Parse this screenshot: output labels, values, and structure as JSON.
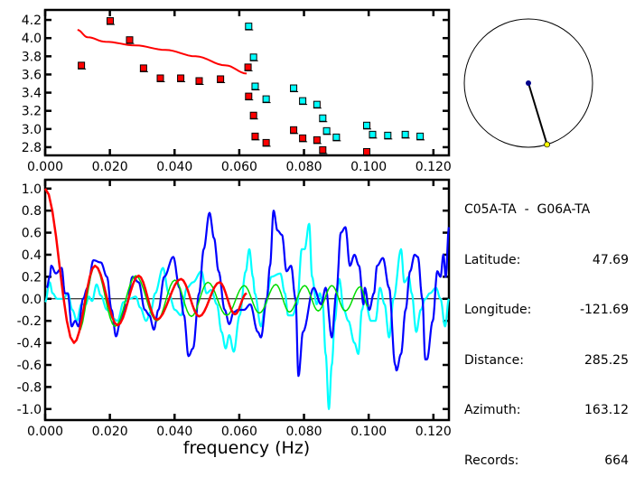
{
  "info": {
    "title": "C05A-TA  -  G06A-TA",
    "rows": [
      {
        "label": "Latitude:",
        "value": "47.69"
      },
      {
        "label": "Longitude:",
        "value": "-121.69"
      },
      {
        "label": "Distance:",
        "value": "285.25"
      },
      {
        "label": "Azimuth:",
        "value": "163.12"
      },
      {
        "label": "Records:",
        "value": "664"
      }
    ]
  },
  "azimuth_deg": 163.12,
  "colors": {
    "red": "#ff0000",
    "cyan": "#00ffff",
    "blue": "#0000ff",
    "green": "#00dd00",
    "navy": "#00008b",
    "yellow": "#ffff00"
  },
  "chart_data": [
    {
      "type": "scatter",
      "title": "",
      "xlabel": "",
      "ylabel": "",
      "xlim": [
        0,
        0.1248
      ],
      "ylim": [
        2.71,
        4.31
      ],
      "xticks": [
        "0.000",
        "0.020",
        "0.040",
        "0.060",
        "0.080",
        "0.100",
        "0.120"
      ],
      "xtick_values": [
        0,
        0.02,
        0.04,
        0.06,
        0.08,
        0.1,
        0.12
      ],
      "yticks": [
        "2.8",
        "3.0",
        "3.2",
        "3.4",
        "3.6",
        "3.8",
        "4.0",
        "4.2"
      ],
      "ytick_values": [
        2.8,
        3.0,
        3.2,
        3.4,
        3.6,
        3.8,
        4.0,
        4.2
      ],
      "series": [
        {
          "name": "red-points",
          "color": "#ff0000",
          "x": [
            0.0112,
            0.0201,
            0.0261,
            0.0304,
            0.0356,
            0.0419,
            0.0476,
            0.0542,
            0.0627,
            0.0629,
            0.0644,
            0.0649,
            0.0683,
            0.0768,
            0.0796,
            0.084,
            0.0858,
            0.0994
          ],
          "y": [
            3.7,
            4.19,
            3.98,
            3.67,
            3.56,
            3.56,
            3.53,
            3.55,
            3.68,
            3.36,
            3.15,
            2.92,
            2.85,
            2.99,
            2.9,
            2.88,
            2.77,
            2.75
          ]
        },
        {
          "name": "cyan-points",
          "color": "#00ffff",
          "x": [
            0.0629,
            0.0644,
            0.0649,
            0.0683,
            0.0768,
            0.0796,
            0.084,
            0.0858,
            0.087,
            0.09,
            0.0994,
            0.1012,
            0.1059,
            0.1113,
            0.1159
          ],
          "y": [
            4.13,
            3.79,
            3.47,
            3.33,
            3.45,
            3.31,
            3.27,
            3.12,
            2.98,
            2.91,
            3.04,
            2.94,
            2.93,
            2.94,
            2.92
          ]
        },
        {
          "name": "red-curve",
          "type": "line",
          "color": "#ff0000",
          "x": [
            0.01,
            0.0131,
            0.0186,
            0.0279,
            0.0372,
            0.0465,
            0.0558,
            0.0623
          ],
          "y": [
            4.09,
            4.01,
            3.96,
            3.92,
            3.87,
            3.8,
            3.7,
            3.61
          ]
        }
      ]
    },
    {
      "type": "line",
      "title": "",
      "xlabel": "frequency (Hz)",
      "ylabel": "",
      "xlim": [
        0,
        0.1248
      ],
      "ylim": [
        -1.1,
        1.08
      ],
      "xticks": [
        "0.000",
        "0.020",
        "0.040",
        "0.060",
        "0.080",
        "0.100",
        "0.120"
      ],
      "xtick_values": [
        0,
        0.02,
        0.04,
        0.06,
        0.08,
        0.1,
        0.12
      ],
      "yticks": [
        "1.0",
        "0.8",
        "0.6",
        "0.4",
        "0.2",
        "0.0",
        "-0.2",
        "-0.4",
        "-0.6",
        "-0.8",
        "-1.0"
      ],
      "ytick_values": [
        1.0,
        0.8,
        0.6,
        0.4,
        0.2,
        0.0,
        -0.2,
        -0.4,
        -0.6,
        -0.8,
        -1.0
      ],
      "series": [
        {
          "name": "cyan",
          "color": "#00ffff",
          "x": [
            0.0,
            0.0014,
            0.0023,
            0.0037,
            0.0056,
            0.007,
            0.0084,
            0.0098,
            0.0112,
            0.0126,
            0.0135,
            0.0145,
            0.0159,
            0.0172,
            0.0191,
            0.021,
            0.0224,
            0.0242,
            0.0261,
            0.028,
            0.0294,
            0.0312,
            0.0326,
            0.034,
            0.0364,
            0.0382,
            0.0401,
            0.042,
            0.0438,
            0.0457,
            0.0483,
            0.0499,
            0.0513,
            0.0531,
            0.0545,
            0.0558,
            0.0569,
            0.0583,
            0.0601,
            0.062,
            0.0631,
            0.0642,
            0.0648,
            0.0667,
            0.0681,
            0.0699,
            0.0727,
            0.0741,
            0.0751,
            0.0765,
            0.0779,
            0.0793,
            0.0802,
            0.0816,
            0.0825,
            0.0839,
            0.0849,
            0.0858,
            0.0867,
            0.0877,
            0.0886,
            0.0895,
            0.0909,
            0.0923,
            0.0937,
            0.0956,
            0.0968,
            0.0979,
            0.0988,
            0.1007,
            0.1021,
            0.1035,
            0.1049,
            0.1063,
            0.1077,
            0.11,
            0.111,
            0.1124,
            0.1133,
            0.1147,
            0.1161,
            0.1175,
            0.1189,
            0.1208,
            0.1222,
            0.1236,
            0.1248
          ],
          "y": [
            -0.03,
            0.15,
            0.05,
            0.0,
            0.0,
            0.05,
            -0.1,
            -0.2,
            -0.05,
            -0.05,
            0.02,
            -0.02,
            0.13,
            0.03,
            -0.1,
            -0.18,
            -0.2,
            -0.03,
            0.0,
            0.02,
            -0.08,
            -0.2,
            -0.12,
            0.05,
            0.28,
            0.05,
            -0.1,
            -0.15,
            0.1,
            0.15,
            0.25,
            0.05,
            0.08,
            -0.05,
            -0.3,
            -0.45,
            -0.33,
            -0.48,
            -0.15,
            0.25,
            0.45,
            0.2,
            0.05,
            -0.25,
            -0.05,
            0.2,
            0.23,
            0.05,
            -0.15,
            -0.15,
            -0.05,
            0.45,
            0.45,
            0.68,
            0.2,
            -0.05,
            0.05,
            -0.05,
            -0.5,
            -1.0,
            -0.6,
            -0.2,
            0.18,
            -0.1,
            -0.2,
            -0.4,
            -0.5,
            -0.1,
            0.0,
            -0.2,
            -0.2,
            0.1,
            -0.05,
            -0.35,
            0.0,
            0.45,
            0.15,
            0.2,
            0.05,
            -0.3,
            -0.1,
            0.0,
            0.05,
            0.1,
            0.0,
            -0.25,
            0.0
          ]
        },
        {
          "name": "blue",
          "color": "#0000ff",
          "x": [
            0.0005,
            0.0014,
            0.0019,
            0.0033,
            0.0051,
            0.0061,
            0.007,
            0.0082,
            0.0093,
            0.0103,
            0.0117,
            0.0131,
            0.0149,
            0.0172,
            0.0191,
            0.0205,
            0.0219,
            0.0233,
            0.0252,
            0.027,
            0.0289,
            0.0308,
            0.0322,
            0.0336,
            0.035,
            0.0368,
            0.0396,
            0.0415,
            0.0429,
            0.0443,
            0.0457,
            0.0476,
            0.049,
            0.0508,
            0.0522,
            0.0536,
            0.0555,
            0.0569,
            0.0583,
            0.0597,
            0.0615,
            0.0634,
            0.0657,
            0.0667,
            0.0685,
            0.0695,
            0.0706,
            0.0718,
            0.0732,
            0.0746,
            0.076,
            0.0774,
            0.0783,
            0.0797,
            0.083,
            0.0853,
            0.0867,
            0.0886,
            0.09,
            0.0914,
            0.0928,
            0.0942,
            0.0956,
            0.097,
            0.0984,
            0.0988,
            0.1002,
            0.1016,
            0.1026,
            0.1044,
            0.1063,
            0.1082,
            0.1086,
            0.11,
            0.1114,
            0.1128,
            0.1142,
            0.1152,
            0.1166,
            0.1175,
            0.118,
            0.1198,
            0.1212,
            0.1222,
            0.1231,
            0.1238,
            0.1248
          ],
          "y": [
            0.1,
            0.2,
            0.3,
            0.23,
            0.28,
            0.05,
            0.05,
            -0.25,
            -0.2,
            -0.25,
            0.0,
            0.1,
            0.35,
            0.33,
            0.2,
            -0.1,
            -0.34,
            -0.2,
            -0.05,
            0.2,
            0.15,
            -0.1,
            -0.15,
            -0.28,
            -0.1,
            0.2,
            0.38,
            0.1,
            -0.15,
            -0.52,
            -0.45,
            0.05,
            0.45,
            0.78,
            0.55,
            0.25,
            -0.1,
            -0.23,
            -0.12,
            -0.1,
            -0.1,
            -0.05,
            -0.3,
            -0.35,
            0.0,
            0.3,
            0.8,
            0.62,
            0.58,
            0.25,
            0.3,
            0.0,
            -0.7,
            -0.3,
            0.1,
            -0.05,
            0.1,
            -0.35,
            0.05,
            0.6,
            0.65,
            0.3,
            0.4,
            0.3,
            -0.05,
            0.1,
            -0.1,
            0.05,
            0.3,
            0.37,
            0.1,
            -0.6,
            -0.65,
            -0.5,
            -0.1,
            0.25,
            0.4,
            0.38,
            0.0,
            -0.55,
            -0.55,
            -0.2,
            0.25,
            0.2,
            0.4,
            0.2,
            0.65
          ]
        },
        {
          "name": "green",
          "color": "#00dd00",
          "x": [
            0.0103,
            0.0154,
            0.0216,
            0.028,
            0.0345,
            0.0401,
            0.0452,
            0.0503,
            0.0561,
            0.0615,
            0.0662,
            0.0713,
            0.0755,
            0.0802,
            0.0844,
            0.0886,
            0.0928,
            0.0974,
            0.0998
          ],
          "y": [
            -0.3,
            0.3,
            -0.25,
            0.21,
            -0.2,
            0.17,
            -0.16,
            0.15,
            -0.15,
            0.12,
            -0.13,
            0.13,
            -0.12,
            0.12,
            -0.11,
            0.12,
            -0.11,
            0.11,
            -0.07
          ]
        },
        {
          "name": "red",
          "color": "#ff0000",
          "x": [
            0.0,
            0.0089,
            0.0154,
            0.0224,
            0.0289,
            0.0345,
            0.042,
            0.0476,
            0.0539,
            0.0587,
            0.0623
          ],
          "y": [
            1.0,
            -0.4,
            0.3,
            -0.24,
            0.21,
            -0.19,
            0.18,
            -0.16,
            0.15,
            -0.14,
            0.05
          ]
        }
      ]
    }
  ]
}
